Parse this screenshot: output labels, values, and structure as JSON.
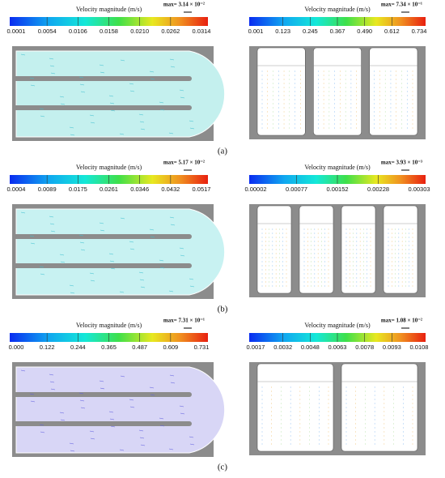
{
  "panels": [
    {
      "title": "Velocity magnitude (m/s)",
      "max_label": "max= 3.14 × 10⁻²",
      "ticks": [
        "0.0001",
        "0.0054",
        "0.0106",
        "0.0158",
        "0.0210",
        "0.0262",
        "0.0314"
      ]
    },
    {
      "title": "Velocity magnitude (m/s)",
      "max_label": "max= 7.34 × 10⁻¹",
      "ticks": [
        "0.001",
        "0.123",
        "0.245",
        "0.367",
        "0.490",
        "0.612",
        "0.734"
      ]
    },
    {
      "title": "Velocity magnitude (m/s)",
      "max_label": "max= 5.17 × 10⁻²",
      "ticks": [
        "0.0004",
        "0.0089",
        "0.0175",
        "0.0261",
        "0.0346",
        "0.0432",
        "0.0517"
      ]
    },
    {
      "title": "Velocity magnitude (m/s)",
      "max_label": "max= 3.93 × 10⁻³",
      "ticks": [
        "0.00002",
        "0.00077",
        "0.00152",
        "0.00228",
        "0.00303"
      ]
    },
    {
      "title": "Velocity magnitude (m/s)",
      "max_label": "max= 7.31 × 10⁻¹",
      "ticks": [
        "0.000",
        "0.122",
        "0.244",
        "0.365",
        "0.487",
        "0.609",
        "0.731"
      ]
    },
    {
      "title": "Velocity magnitude (m/s)",
      "max_label": "max= 1.08 × 10⁻²",
      "ticks": [
        "0.0017",
        "0.0032",
        "0.0048",
        "0.0063",
        "0.0078",
        "0.0093",
        "0.0108"
      ]
    }
  ],
  "row_labels": [
    "(a)",
    "(b)",
    "(c)"
  ]
}
